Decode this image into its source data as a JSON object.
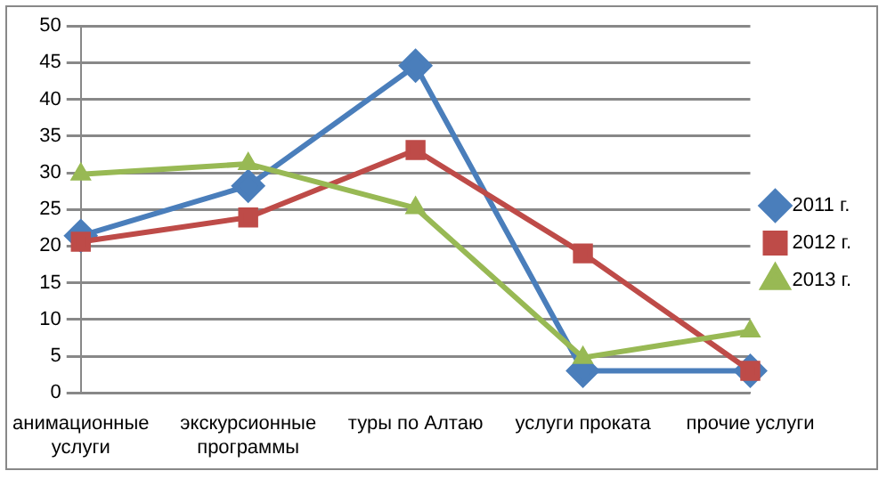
{
  "chart_data": {
    "type": "line",
    "categories": [
      "анимационные услуги",
      "экскурсионные программы",
      "туры по Алтаю",
      "услуги проката",
      "прочие услуги"
    ],
    "series": [
      {
        "name": "2011 г.",
        "color": "#4a7ebb",
        "marker": "diamond",
        "values": [
          21.4,
          28.2,
          44.6,
          3,
          3
        ]
      },
      {
        "name": "2012 г.",
        "color": "#be4b48",
        "marker": "square",
        "values": [
          20.6,
          23.9,
          33.1,
          19,
          3
        ]
      },
      {
        "name": "2013 г.",
        "color": "#98b954",
        "marker": "triangle",
        "values": [
          29.8,
          31.2,
          25.2,
          4.8,
          8.4
        ]
      }
    ],
    "ylim": [
      0,
      50
    ],
    "yticks": [
      0,
      5,
      10,
      15,
      20,
      25,
      30,
      35,
      40,
      45,
      50
    ],
    "grid": "y",
    "legend": "right",
    "line_style": "solid"
  }
}
